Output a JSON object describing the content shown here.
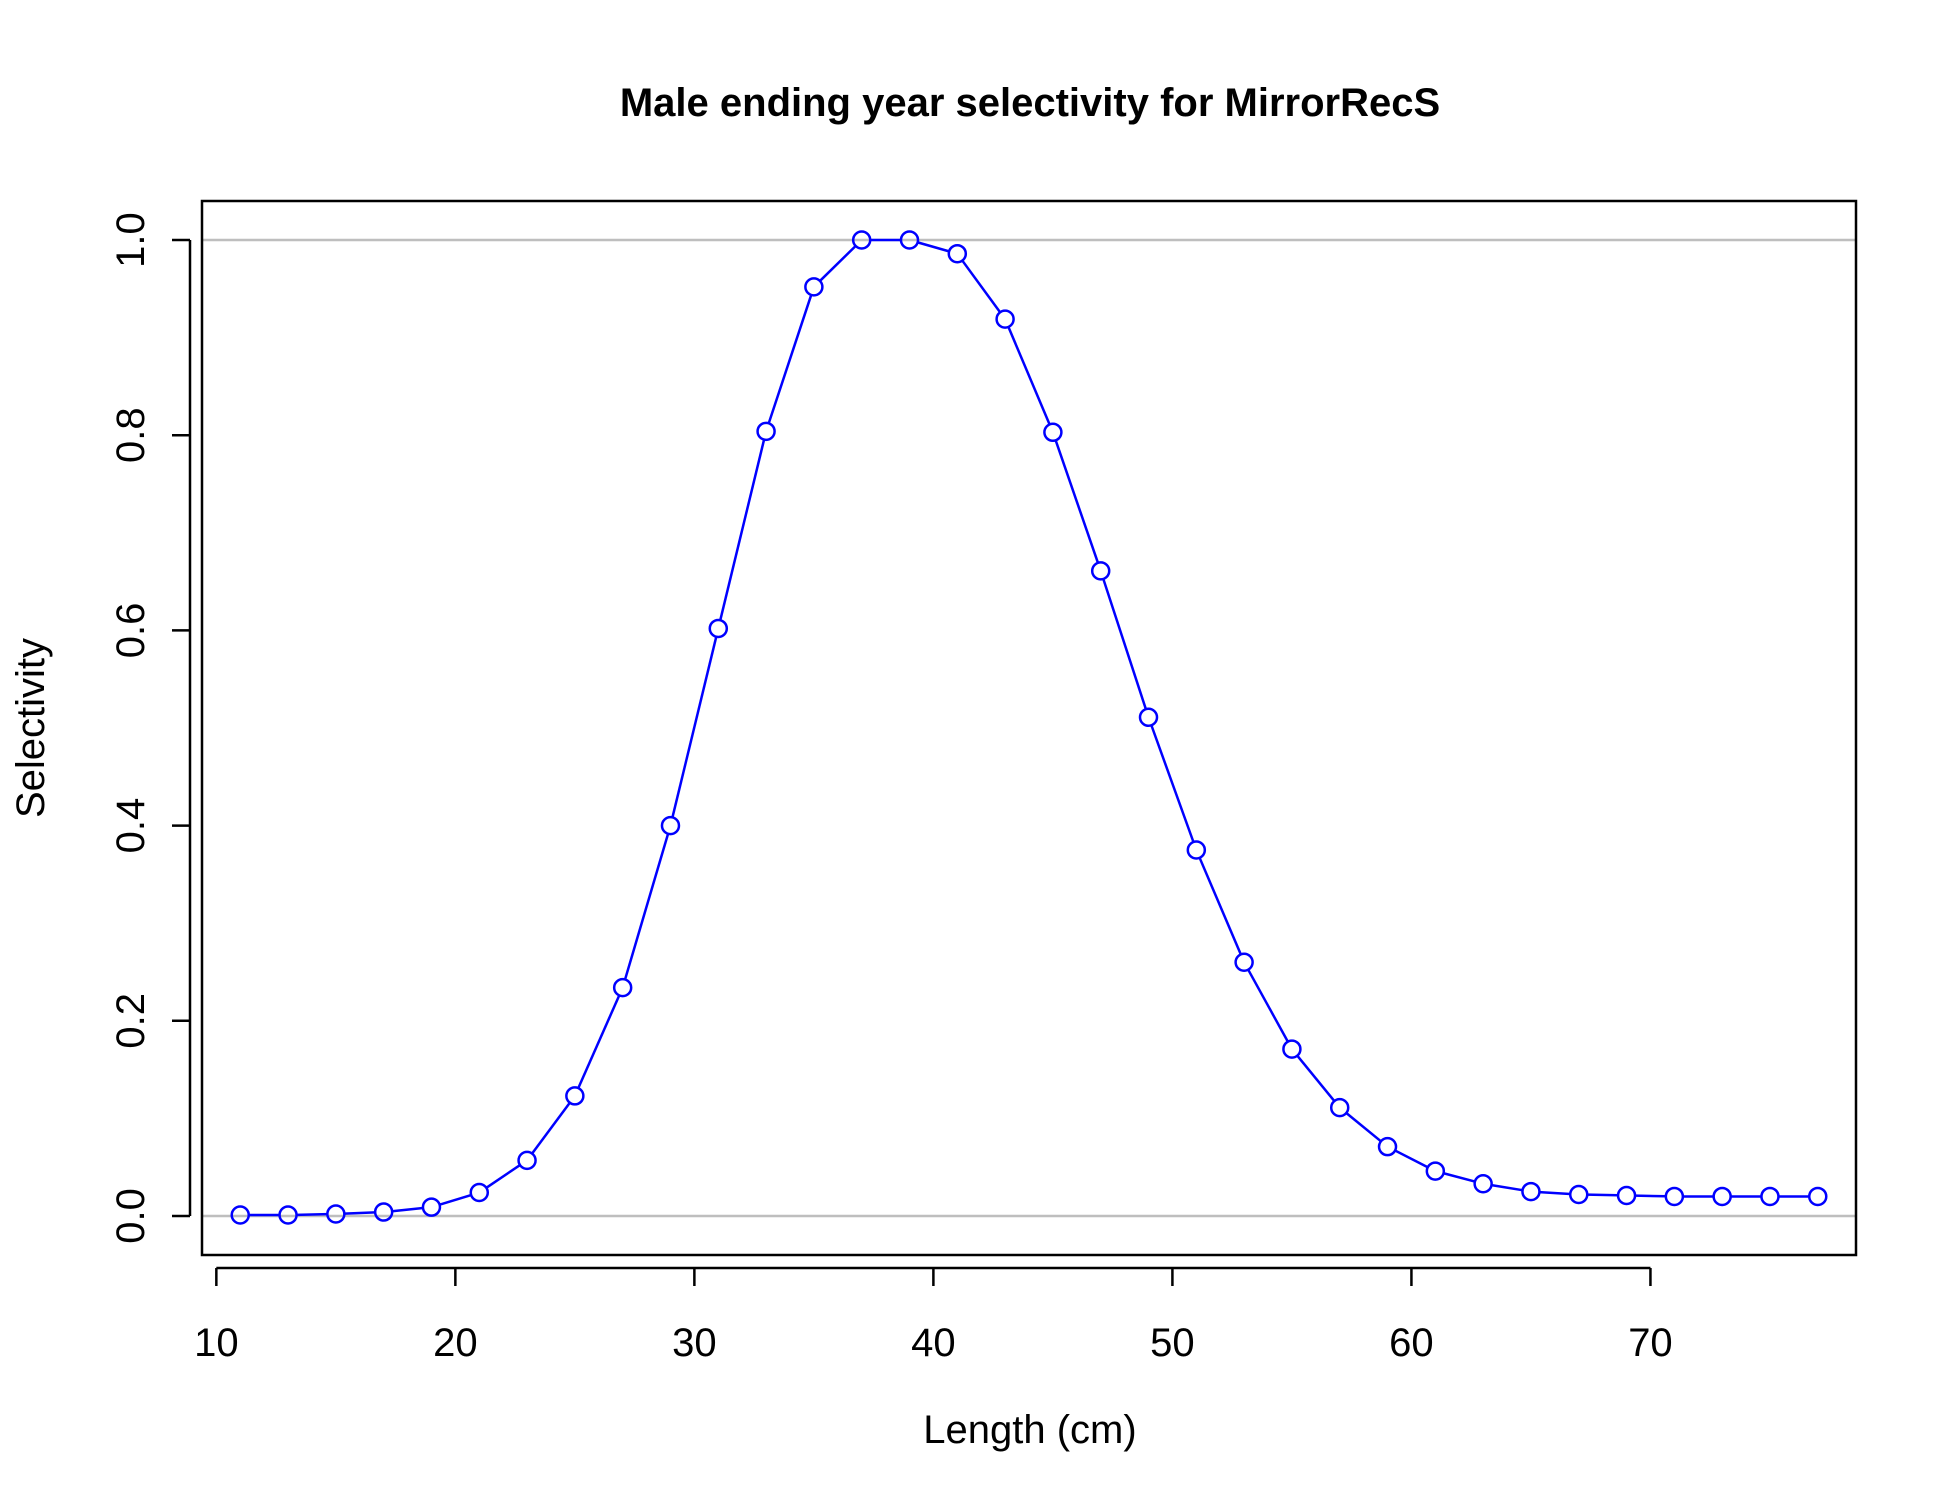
{
  "chart_data": {
    "type": "line",
    "title": "Male ending year selectivity for MirrorRecS",
    "xlabel": "Length (cm)",
    "ylabel": "Selectivity",
    "xlim": [
      9.4,
      78.6
    ],
    "ylim": [
      -0.04,
      1.04
    ],
    "xticks": [
      10,
      20,
      30,
      40,
      50,
      60,
      70
    ],
    "xtick_labels": [
      "10",
      "20",
      "30",
      "40",
      "50",
      "60",
      "70"
    ],
    "yticks": [
      0.0,
      0.2,
      0.4,
      0.6,
      0.8,
      1.0
    ],
    "ytick_labels": [
      "0.0",
      "0.2",
      "0.4",
      "0.6",
      "0.8",
      "1.0"
    ],
    "reference_lines_y": [
      0,
      1
    ],
    "reference_line_color": "#bebebe",
    "series_color": "#0000ff",
    "marker": "open-circle",
    "grid": false,
    "series": [
      {
        "x": [
          11,
          13,
          15,
          17,
          19,
          21,
          23,
          25,
          27,
          29,
          31,
          33,
          35,
          37,
          39,
          41,
          43,
          45,
          47,
          49,
          51,
          53,
          55,
          57,
          59,
          61,
          63,
          65,
          67,
          69,
          71,
          73,
          75,
          77
        ],
        "values": [
          0.001,
          0.001,
          0.002,
          0.004,
          0.009,
          0.024,
          0.057,
          0.123,
          0.234,
          0.4,
          0.602,
          0.804,
          0.952,
          1.0,
          1.0,
          0.986,
          0.919,
          0.803,
          0.661,
          0.511,
          0.375,
          0.26,
          0.171,
          0.111,
          0.071,
          0.046,
          0.033,
          0.025,
          0.022,
          0.021,
          0.02,
          0.02,
          0.02,
          0.02
        ]
      }
    ]
  }
}
